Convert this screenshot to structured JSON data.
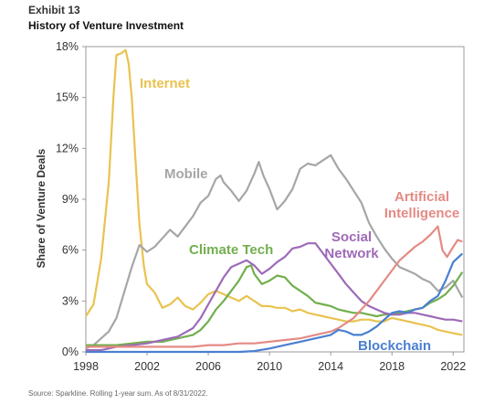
{
  "header": {
    "exhibit": "Exhibit 13",
    "title": "History of Venture Investment"
  },
  "footer": {
    "source": "Source: Sparkline. Rolling 1-year sum. As of 8/31/2022."
  },
  "chart_data": {
    "type": "line",
    "title": "History of Venture Investment",
    "ylabel": "Share of Venture Deals",
    "xlabel": "",
    "xlim": [
      1998,
      2022.7
    ],
    "ylim": [
      0,
      18
    ],
    "x_ticks": [
      "1998",
      "2002",
      "2006",
      "2010",
      "2014",
      "2018",
      "2022"
    ],
    "x_tick_values": [
      1998,
      2002,
      2006,
      2010,
      2014,
      2018,
      2022
    ],
    "y_ticks": [
      "0%",
      "3%",
      "6%",
      "9%",
      "12%",
      "15%",
      "18%"
    ],
    "y_tick_values": [
      0,
      3,
      6,
      9,
      12,
      15,
      18
    ],
    "grid": false,
    "legend": "inline labels",
    "series": [
      {
        "name": "Internet",
        "color": "#E9C34F",
        "points": [
          [
            1998,
            2.1
          ],
          [
            1998.5,
            2.8
          ],
          [
            1999,
            5.5
          ],
          [
            1999.5,
            10
          ],
          [
            1999.8,
            15
          ],
          [
            2000,
            17.5
          ],
          [
            2000.3,
            17.6
          ],
          [
            2000.6,
            17.8
          ],
          [
            2000.8,
            17.0
          ],
          [
            2001,
            15
          ],
          [
            2001.2,
            12
          ],
          [
            2001.5,
            7.5
          ],
          [
            2001.8,
            5.0
          ],
          [
            2002,
            4.0
          ],
          [
            2002.5,
            3.5
          ],
          [
            2003,
            2.6
          ],
          [
            2003.5,
            2.8
          ],
          [
            2004,
            3.2
          ],
          [
            2004.5,
            2.7
          ],
          [
            2005,
            2.5
          ],
          [
            2005.5,
            2.9
          ],
          [
            2006,
            3.4
          ],
          [
            2006.5,
            3.6
          ],
          [
            2007,
            3.4
          ],
          [
            2007.5,
            3.2
          ],
          [
            2008,
            3.0
          ],
          [
            2008.5,
            3.3
          ],
          [
            2009,
            3.0
          ],
          [
            2009.5,
            2.7
          ],
          [
            2010,
            2.7
          ],
          [
            2010.5,
            2.6
          ],
          [
            2011,
            2.6
          ],
          [
            2011.5,
            2.4
          ],
          [
            2012,
            2.5
          ],
          [
            2012.5,
            2.3
          ],
          [
            2013,
            2.2
          ],
          [
            2013.5,
            2.1
          ],
          [
            2014,
            2.0
          ],
          [
            2014.5,
            1.9
          ],
          [
            2015,
            1.8
          ],
          [
            2015.5,
            1.8
          ],
          [
            2016,
            1.9
          ],
          [
            2016.5,
            1.9
          ],
          [
            2017,
            1.8
          ],
          [
            2017.5,
            1.8
          ],
          [
            2018,
            2.0
          ],
          [
            2018.5,
            1.9
          ],
          [
            2019,
            1.8
          ],
          [
            2019.5,
            1.7
          ],
          [
            2020,
            1.6
          ],
          [
            2020.5,
            1.5
          ],
          [
            2021,
            1.3
          ],
          [
            2021.5,
            1.2
          ],
          [
            2022,
            1.1
          ],
          [
            2022.6,
            1.0
          ]
        ]
      },
      {
        "name": "Mobile",
        "color": "#A6A6A6",
        "points": [
          [
            1998,
            0.2
          ],
          [
            1998.5,
            0.4
          ],
          [
            1999,
            0.8
          ],
          [
            1999.5,
            1.2
          ],
          [
            2000,
            2.0
          ],
          [
            2000.5,
            3.5
          ],
          [
            2001,
            5.0
          ],
          [
            2001.5,
            6.3
          ],
          [
            2002,
            5.9
          ],
          [
            2002.5,
            6.2
          ],
          [
            2003,
            6.7
          ],
          [
            2003.5,
            7.2
          ],
          [
            2004,
            6.8
          ],
          [
            2004.5,
            7.4
          ],
          [
            2005,
            8.0
          ],
          [
            2005.5,
            8.8
          ],
          [
            2006,
            9.2
          ],
          [
            2006.5,
            10.2
          ],
          [
            2006.8,
            10.4
          ],
          [
            2007,
            10.0
          ],
          [
            2007.5,
            9.5
          ],
          [
            2008,
            8.9
          ],
          [
            2008.5,
            9.5
          ],
          [
            2009,
            10.5
          ],
          [
            2009.3,
            11.2
          ],
          [
            2009.6,
            10.4
          ],
          [
            2010,
            9.6
          ],
          [
            2010.5,
            8.4
          ],
          [
            2011,
            8.9
          ],
          [
            2011.5,
            9.6
          ],
          [
            2012,
            10.8
          ],
          [
            2012.5,
            11.1
          ],
          [
            2013,
            11.0
          ],
          [
            2013.5,
            11.3
          ],
          [
            2014,
            11.6
          ],
          [
            2014.5,
            10.8
          ],
          [
            2015,
            10.2
          ],
          [
            2015.5,
            9.5
          ],
          [
            2016,
            8.8
          ],
          [
            2016.5,
            7.6
          ],
          [
            2017,
            6.8
          ],
          [
            2017.5,
            6.1
          ],
          [
            2018,
            5.5
          ],
          [
            2018.5,
            5.0
          ],
          [
            2019,
            4.8
          ],
          [
            2019.5,
            4.6
          ],
          [
            2020,
            4.3
          ],
          [
            2020.5,
            4.1
          ],
          [
            2021,
            3.6
          ],
          [
            2021.5,
            3.8
          ],
          [
            2022,
            4.2
          ],
          [
            2022.6,
            3.2
          ]
        ]
      },
      {
        "name": "Climate Tech",
        "color": "#72AF4E",
        "points": [
          [
            1998,
            0.4
          ],
          [
            1999,
            0.4
          ],
          [
            2000,
            0.4
          ],
          [
            2001,
            0.5
          ],
          [
            2002,
            0.6
          ],
          [
            2003,
            0.6
          ],
          [
            2004,
            0.8
          ],
          [
            2005,
            1.0
          ],
          [
            2005.5,
            1.3
          ],
          [
            2006,
            1.8
          ],
          [
            2006.5,
            2.5
          ],
          [
            2007,
            3.0
          ],
          [
            2007.5,
            3.6
          ],
          [
            2008,
            4.2
          ],
          [
            2008.5,
            5.0
          ],
          [
            2008.8,
            5.1
          ],
          [
            2009,
            4.6
          ],
          [
            2009.5,
            4.0
          ],
          [
            2010,
            4.2
          ],
          [
            2010.5,
            4.5
          ],
          [
            2011,
            4.4
          ],
          [
            2011.5,
            3.9
          ],
          [
            2012,
            3.6
          ],
          [
            2012.5,
            3.3
          ],
          [
            2013,
            2.9
          ],
          [
            2013.5,
            2.8
          ],
          [
            2014,
            2.7
          ],
          [
            2014.5,
            2.5
          ],
          [
            2015,
            2.4
          ],
          [
            2015.5,
            2.3
          ],
          [
            2016,
            2.3
          ],
          [
            2016.5,
            2.2
          ],
          [
            2017,
            2.1
          ],
          [
            2017.5,
            2.2
          ],
          [
            2018,
            2.2
          ],
          [
            2018.5,
            2.3
          ],
          [
            2019,
            2.4
          ],
          [
            2019.5,
            2.5
          ],
          [
            2020,
            2.6
          ],
          [
            2020.5,
            2.9
          ],
          [
            2021,
            3.1
          ],
          [
            2021.5,
            3.4
          ],
          [
            2022,
            3.9
          ],
          [
            2022.6,
            4.7
          ]
        ]
      },
      {
        "name": "Social Network",
        "color": "#9E6AB8",
        "points": [
          [
            1998,
            0.1
          ],
          [
            1999,
            0.1
          ],
          [
            2000,
            0.3
          ],
          [
            2001,
            0.4
          ],
          [
            2002,
            0.5
          ],
          [
            2003,
            0.7
          ],
          [
            2004,
            0.9
          ],
          [
            2005,
            1.4
          ],
          [
            2005.5,
            2.0
          ],
          [
            2006,
            2.8
          ],
          [
            2006.5,
            3.6
          ],
          [
            2007,
            4.4
          ],
          [
            2007.5,
            5.0
          ],
          [
            2008,
            5.2
          ],
          [
            2008.5,
            5.4
          ],
          [
            2009,
            5.1
          ],
          [
            2009.5,
            4.6
          ],
          [
            2010,
            4.9
          ],
          [
            2010.5,
            5.3
          ],
          [
            2011,
            5.6
          ],
          [
            2011.5,
            6.1
          ],
          [
            2012,
            6.2
          ],
          [
            2012.5,
            6.4
          ],
          [
            2013,
            6.4
          ],
          [
            2013.5,
            5.8
          ],
          [
            2014,
            5.2
          ],
          [
            2014.5,
            4.6
          ],
          [
            2015,
            4.0
          ],
          [
            2015.5,
            3.5
          ],
          [
            2016,
            3.0
          ],
          [
            2016.5,
            2.7
          ],
          [
            2017,
            2.5
          ],
          [
            2017.5,
            2.3
          ],
          [
            2018,
            2.2
          ],
          [
            2018.5,
            2.2
          ],
          [
            2019,
            2.3
          ],
          [
            2019.5,
            2.3
          ],
          [
            2020,
            2.2
          ],
          [
            2020.5,
            2.1
          ],
          [
            2021,
            2.0
          ],
          [
            2021.5,
            1.9
          ],
          [
            2022,
            1.9
          ],
          [
            2022.6,
            1.8
          ]
        ]
      },
      {
        "name": "Artificial Intelligence",
        "color": "#E48A84",
        "points": [
          [
            1998,
            0.3
          ],
          [
            1999,
            0.3
          ],
          [
            2000,
            0.3
          ],
          [
            2001,
            0.3
          ],
          [
            2002,
            0.3
          ],
          [
            2003,
            0.3
          ],
          [
            2004,
            0.3
          ],
          [
            2005,
            0.3
          ],
          [
            2006,
            0.4
          ],
          [
            2007,
            0.4
          ],
          [
            2008,
            0.5
          ],
          [
            2009,
            0.5
          ],
          [
            2010,
            0.6
          ],
          [
            2011,
            0.7
          ],
          [
            2012,
            0.8
          ],
          [
            2013,
            1.0
          ],
          [
            2014,
            1.2
          ],
          [
            2014.5,
            1.4
          ],
          [
            2015,
            1.7
          ],
          [
            2015.5,
            2.0
          ],
          [
            2016,
            2.5
          ],
          [
            2016.5,
            3.0
          ],
          [
            2017,
            3.6
          ],
          [
            2017.5,
            4.2
          ],
          [
            2018,
            4.8
          ],
          [
            2018.5,
            5.4
          ],
          [
            2019,
            5.8
          ],
          [
            2019.5,
            6.2
          ],
          [
            2020,
            6.5
          ],
          [
            2020.5,
            6.9
          ],
          [
            2021,
            7.4
          ],
          [
            2021.3,
            6.0
          ],
          [
            2021.6,
            5.6
          ],
          [
            2022,
            6.2
          ],
          [
            2022.3,
            6.6
          ],
          [
            2022.6,
            6.5
          ]
        ]
      },
      {
        "name": "Blockchain",
        "color": "#4A7FD0",
        "points": [
          [
            1998,
            0.0
          ],
          [
            2000,
            0.0
          ],
          [
            2004,
            0.0
          ],
          [
            2008,
            0.0
          ],
          [
            2009,
            0.05
          ],
          [
            2010,
            0.2
          ],
          [
            2011,
            0.4
          ],
          [
            2012,
            0.6
          ],
          [
            2013,
            0.8
          ],
          [
            2014,
            1.0
          ],
          [
            2014.5,
            1.3
          ],
          [
            2015,
            1.2
          ],
          [
            2015.5,
            1.0
          ],
          [
            2016,
            1.0
          ],
          [
            2016.5,
            1.2
          ],
          [
            2017,
            1.5
          ],
          [
            2017.5,
            1.9
          ],
          [
            2018,
            2.3
          ],
          [
            2018.5,
            2.4
          ],
          [
            2019,
            2.3
          ],
          [
            2019.5,
            2.5
          ],
          [
            2020,
            2.6
          ],
          [
            2020.5,
            3.0
          ],
          [
            2021,
            3.3
          ],
          [
            2021.5,
            4.2
          ],
          [
            2022,
            5.3
          ],
          [
            2022.6,
            5.8
          ]
        ]
      }
    ],
    "labels": [
      {
        "lines": [
          "Internet"
        ],
        "series": "Internet"
      },
      {
        "lines": [
          "Mobile"
        ],
        "series": "Mobile"
      },
      {
        "lines": [
          "Climate Tech"
        ],
        "series": "Climate Tech"
      },
      {
        "lines": [
          "Social",
          "Network"
        ],
        "series": "Social Network"
      },
      {
        "lines": [
          "Artificial",
          "Intelligence"
        ],
        "series": "Artificial Intelligence"
      },
      {
        "lines": [
          "Blockchain"
        ],
        "series": "Blockchain"
      }
    ]
  }
}
